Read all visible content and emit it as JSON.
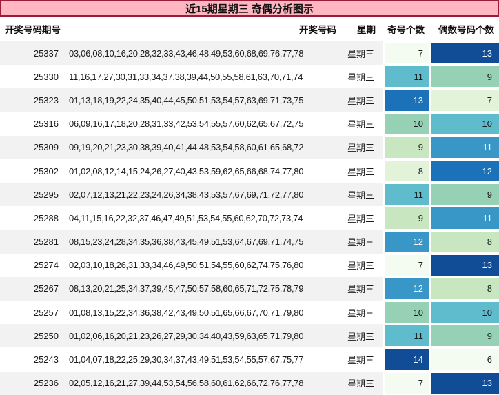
{
  "title": {
    "text": "近15期星期三 奇偶分析图示",
    "bg_color": "#ffb6c1",
    "border_color": "#991c38"
  },
  "table": {
    "headers": [
      "开奖号码期号",
      "开奖号码",
      "星期",
      "奇号个数",
      "偶数号码个数"
    ],
    "rows": [
      {
        "period": "25337",
        "numbers": "03,06,08,10,16,20,28,32,33,43,46,48,49,53,60,68,69,76,77,78",
        "week": "星期三",
        "odd": 7,
        "even": 13
      },
      {
        "period": "25330",
        "numbers": "11,16,17,27,30,31,33,34,37,38,39,44,50,55,58,61,63,70,71,74",
        "week": "星期三",
        "odd": 11,
        "even": 9
      },
      {
        "period": "25323",
        "numbers": "01,13,18,19,22,24,35,40,44,45,50,51,53,54,57,63,69,71,73,75",
        "week": "星期三",
        "odd": 13,
        "even": 7
      },
      {
        "period": "25316",
        "numbers": "06,09,16,17,18,20,28,31,33,42,53,54,55,57,60,62,65,67,72,75",
        "week": "星期三",
        "odd": 10,
        "even": 10
      },
      {
        "period": "25309",
        "numbers": "09,19,20,21,23,30,38,39,40,41,44,48,53,54,58,60,61,65,68,72",
        "week": "星期三",
        "odd": 9,
        "even": 11
      },
      {
        "period": "25302",
        "numbers": "01,02,08,12,14,15,24,26,27,40,43,53,59,62,65,66,68,74,77,80",
        "week": "星期三",
        "odd": 8,
        "even": 12
      },
      {
        "period": "25295",
        "numbers": "02,07,12,13,21,22,23,24,26,34,38,43,53,57,67,69,71,72,77,80",
        "week": "星期三",
        "odd": 11,
        "even": 9
      },
      {
        "period": "25288",
        "numbers": "04,11,15,16,22,32,37,46,47,49,51,53,54,55,60,62,70,72,73,74",
        "week": "星期三",
        "odd": 9,
        "even": 11
      },
      {
        "period": "25281",
        "numbers": "08,15,23,24,28,34,35,36,38,43,45,49,51,53,64,67,69,71,74,75",
        "week": "星期三",
        "odd": 12,
        "even": 8
      },
      {
        "period": "25274",
        "numbers": "02,03,10,18,26,31,33,34,46,49,50,51,54,55,60,62,74,75,76,80",
        "week": "星期三",
        "odd": 7,
        "even": 13
      },
      {
        "period": "25267",
        "numbers": "08,13,20,21,25,34,37,39,45,47,50,57,58,60,65,71,72,75,78,79",
        "week": "星期三",
        "odd": 12,
        "even": 8
      },
      {
        "period": "25257",
        "numbers": "01,08,13,15,22,34,36,38,42,43,49,50,51,65,66,67,70,71,79,80",
        "week": "星期三",
        "odd": 10,
        "even": 10
      },
      {
        "period": "25250",
        "numbers": "01,02,06,16,20,21,23,26,27,29,30,34,40,43,59,63,65,71,79,80",
        "week": "星期三",
        "odd": 11,
        "even": 9
      },
      {
        "period": "25243",
        "numbers": "01,04,07,18,22,25,29,30,34,37,43,49,51,53,54,55,57,67,75,77",
        "week": "星期三",
        "odd": 14,
        "even": 6
      },
      {
        "period": "25236",
        "numbers": "02,05,12,16,21,27,39,44,53,54,56,58,60,61,62,66,72,76,77,78",
        "week": "星期三",
        "odd": 7,
        "even": 13
      }
    ]
  },
  "heatmap": {
    "palette": [
      "#f4fbf0",
      "#e2f3d9",
      "#c8e6c0",
      "#96d1b5",
      "#5ebccd",
      "#3997c8",
      "#1b72b8",
      "#114c96"
    ],
    "odd_min": 7,
    "even_min": 6,
    "white_text_from_index": 5,
    "dark_text": "#1a1a1a",
    "light_text": "#f8f8f8"
  },
  "stripe_color": "#f2f2f2"
}
